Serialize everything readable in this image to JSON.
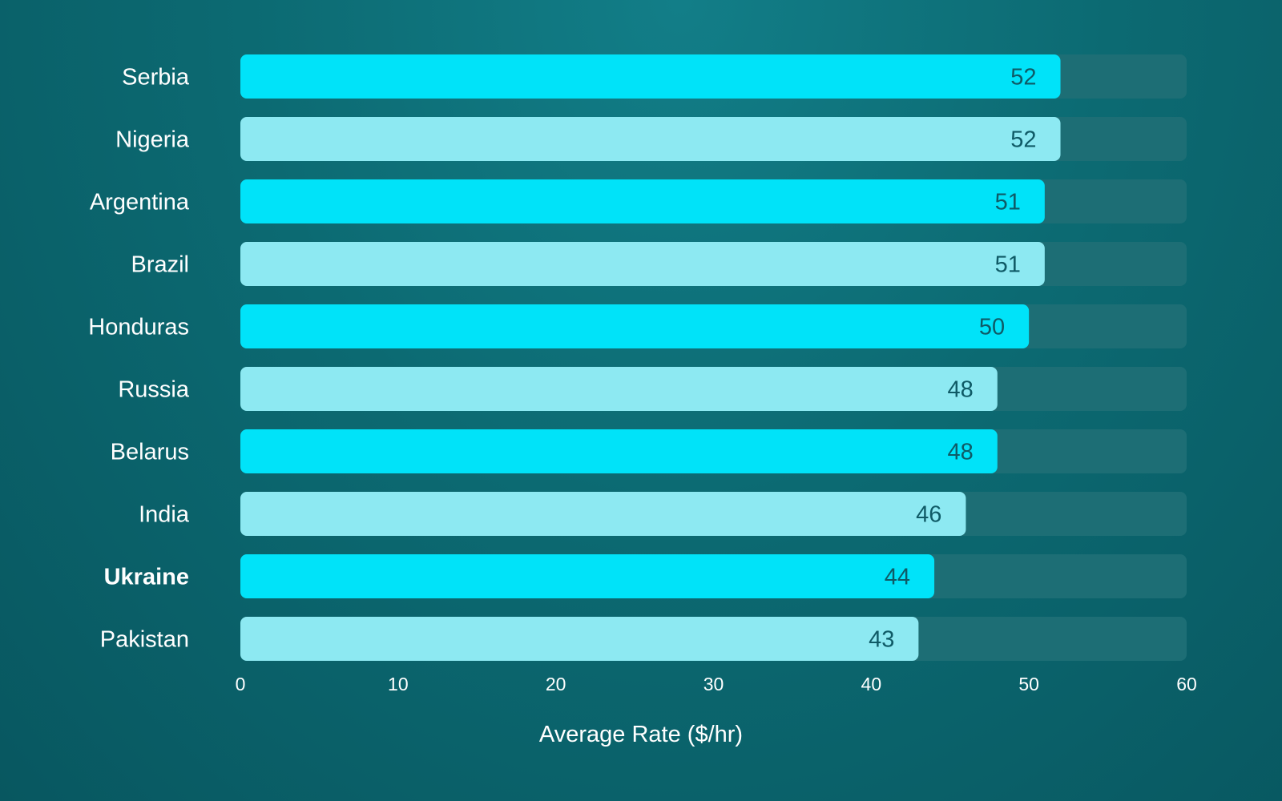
{
  "chart_data": {
    "type": "bar",
    "orientation": "horizontal",
    "categories": [
      "Serbia",
      "Nigeria",
      "Argentina",
      "Brazil",
      "Honduras",
      "Russia",
      "Belarus",
      "India",
      "Ukraine",
      "Pakistan"
    ],
    "values": [
      52,
      52,
      51,
      51,
      50,
      48,
      48,
      46,
      44,
      43
    ],
    "highlighted_category": "Ukraine",
    "xlabel": "Average Rate ($/hr)",
    "ylabel": "",
    "xlim": [
      0,
      60
    ],
    "x_ticks": [
      0,
      10,
      20,
      30,
      40,
      50,
      60
    ],
    "grid": false,
    "legend": "none",
    "colors": {
      "bar_primary": "#00e3f9",
      "bar_secondary": "#8de9f2",
      "bar_track": "#1d6e75",
      "value_text": "#0f5a66",
      "label_text": "#ffffff"
    }
  }
}
